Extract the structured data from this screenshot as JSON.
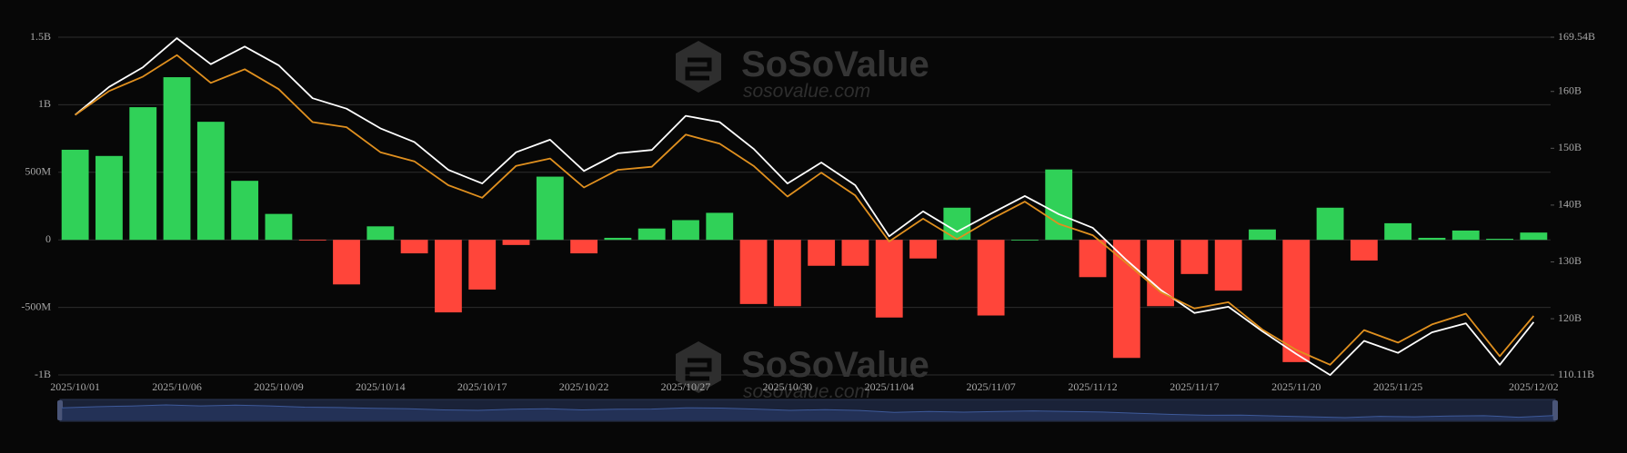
{
  "chart_data": {
    "type": "bar",
    "watermarks": [
      {
        "brand": "SoSoValue",
        "site": "sosovalue.com"
      },
      {
        "brand": "SoSoValue",
        "site": "sosovalue.com"
      }
    ],
    "categories": [
      "2025/10/01",
      null,
      null,
      "2025/10/06",
      null,
      null,
      "2025/10/09",
      null,
      null,
      "2025/10/14",
      null,
      null,
      "2025/10/17",
      null,
      null,
      "2025/10/22",
      null,
      null,
      "2025/10/27",
      null,
      null,
      "2025/10/30",
      null,
      null,
      "2025/11/04",
      null,
      null,
      "2025/11/07",
      null,
      null,
      "2025/11/12",
      null,
      null,
      "2025/11/17",
      null,
      null,
      "2025/11/20",
      null,
      null,
      "2025/11/25",
      null,
      null,
      null,
      "2025/12/02"
    ],
    "series": [
      {
        "type": "bar",
        "color": "#30d158",
        "negative_color": "#ff453a",
        "values": [
          0.667,
          0.621,
          0.982,
          1.204,
          0.874,
          0.437,
          0.192,
          -0.002,
          -0.33,
          0.1,
          -0.1,
          -0.537,
          -0.368,
          -0.038,
          0.468,
          -0.1,
          0.015,
          0.084,
          0.146,
          0.2,
          -0.475,
          -0.491,
          -0.192,
          -0.192,
          -0.575,
          -0.138,
          0.238,
          -0.56,
          0,
          0.521,
          -0.276,
          -0.874,
          -0.491,
          -0.253,
          -0.376,
          0.077,
          -0.905,
          0.238,
          -0.153,
          0.123,
          0.015,
          0.069,
          0.008,
          0.054
        ]
      },
      {
        "type": "line",
        "axis": "y2",
        "color": "#ffffff",
        "values": [
          155.87,
          160.79,
          164.25,
          169.36,
          164.8,
          167.9,
          164.6,
          158.8,
          156.96,
          153.5,
          151.1,
          146.2,
          143.8,
          149.3,
          151.5,
          146.0,
          149.1,
          149.7,
          155.7,
          154.6,
          149.9,
          143.8,
          147.5,
          143.5,
          134.5,
          138.9,
          135.3,
          138.5,
          141.6,
          138.4,
          136.0,
          130.3,
          125.1,
          121.0,
          122.1,
          117.8,
          113.8,
          110.1,
          116.1,
          114.0,
          117.6,
          119.2,
          111.9,
          119.4
        ]
      },
      {
        "type": "line",
        "axis": "y2",
        "color": "#e0901f",
        "values": [
          155.87,
          160.06,
          162.6,
          166.4,
          161.5,
          163.9,
          160.4,
          154.6,
          153.7,
          149.3,
          147.7,
          143.5,
          141.3,
          146.9,
          148.2,
          143.1,
          146.2,
          146.75,
          152.4,
          150.8,
          146.9,
          141.5,
          145.7,
          141.7,
          133.6,
          137.6,
          134.0,
          137.5,
          140.6,
          136.7,
          134.7,
          129.8,
          124.7,
          121.8,
          122.9,
          118.1,
          114.5,
          111.9,
          118.0,
          115.8,
          119.0,
          120.9,
          113.4,
          120.5
        ]
      }
    ],
    "ylim": [
      -1,
      1.5
    ],
    "yticks": [
      {
        "value": -1,
        "label": "-1B"
      },
      {
        "value": -0.5,
        "label": "-500M"
      },
      0,
      {
        "value": 0.5,
        "label": "500M"
      },
      {
        "value": 1,
        "label": "1B"
      },
      {
        "value": 1.5,
        "label": "1.5B"
      }
    ],
    "y2lim": [
      110.11,
      169.54
    ],
    "y2ticks": [
      {
        "value": 110.11,
        "label": "110.11B"
      },
      {
        "value": 120,
        "label": "120B"
      },
      {
        "value": 130,
        "label": "130B"
      },
      {
        "value": 140,
        "label": "140B"
      },
      {
        "value": 150,
        "label": "150B"
      },
      {
        "value": 160,
        "label": "160B"
      },
      {
        "value": 169.54,
        "label": "169.54B"
      }
    ],
    "grid": true
  }
}
